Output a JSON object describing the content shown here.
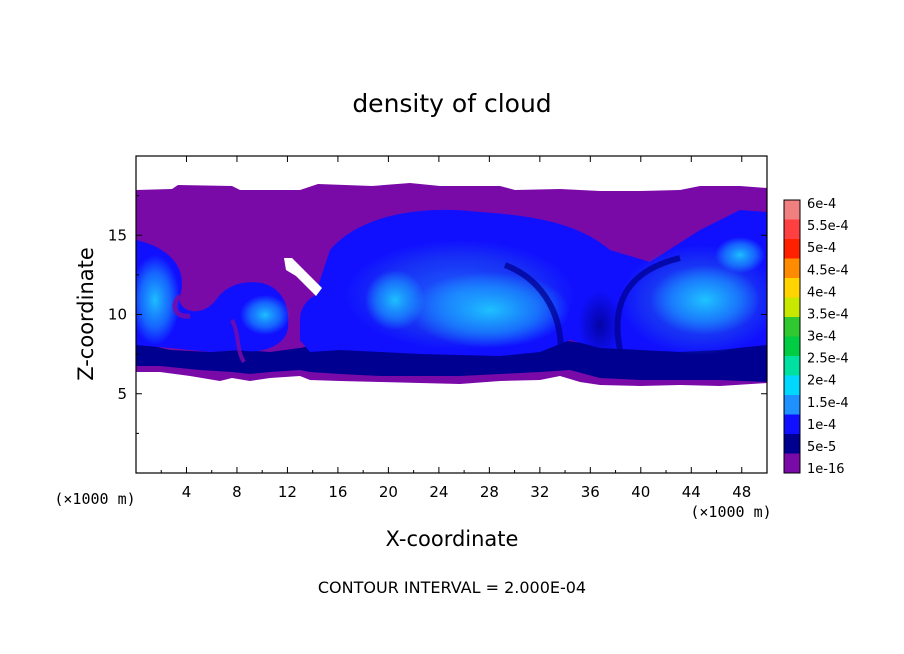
{
  "chart_data": {
    "type": "heatmap",
    "title": "density of cloud",
    "xlabel": "X-coordinate",
    "ylabel": "Z-coordinate",
    "x_unit_label": "(×1000 m)",
    "y_unit_label": "(×1000 m)",
    "xlim": [
      0,
      50
    ],
    "ylim": [
      0,
      20
    ],
    "x_ticks": [
      4,
      8,
      12,
      16,
      20,
      24,
      28,
      32,
      36,
      40,
      44,
      48
    ],
    "y_ticks": [
      5,
      10,
      15
    ],
    "cloud_layer_z": [
      6,
      18
    ],
    "colorbar": {
      "labels": [
        "6e-4",
        "5.5e-4",
        "5e-4",
        "4.5e-4",
        "4e-4",
        "3.5e-4",
        "3e-4",
        "2.5e-4",
        "2e-4",
        "1.5e-4",
        "1e-4",
        "5e-5",
        "1e-16"
      ],
      "colors": [
        "#f08080",
        "#ff4040",
        "#ff2000",
        "#ff8c00",
        "#ffd400",
        "#c8e800",
        "#30c830",
        "#00cc44",
        "#00e0a0",
        "#00d8ff",
        "#1e90ff",
        "#1010ff",
        "#000090",
        "#7a0aa8"
      ]
    },
    "contour_interval_text": "CONTOUR INTERVAL = 2.000E-04"
  }
}
